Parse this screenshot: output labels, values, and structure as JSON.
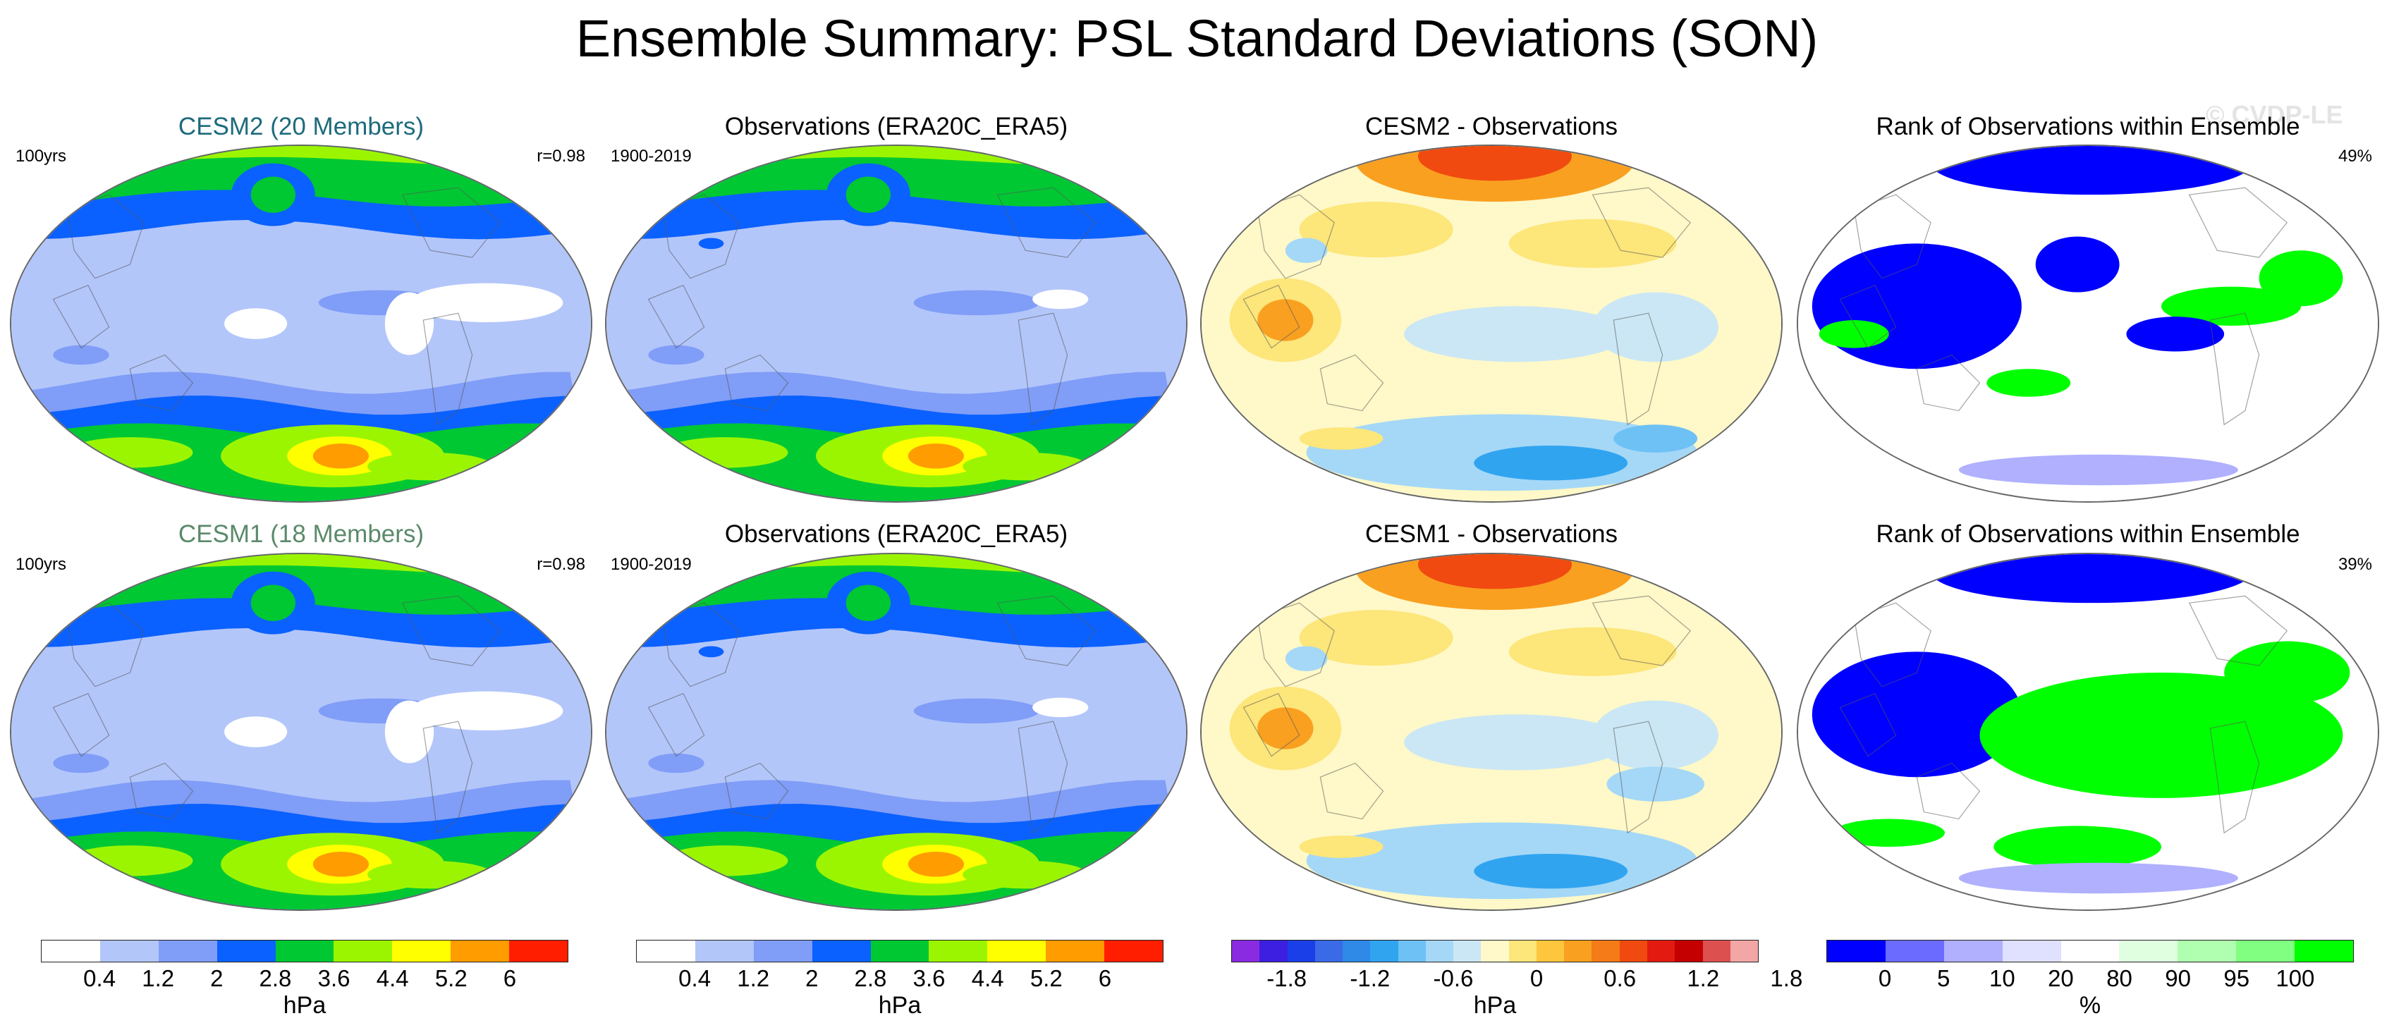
{
  "chart_data": {
    "type": "heatmap",
    "title": "Ensemble Summary: PSL Standard Deviations (SON)",
    "watermark": "© CVDP-LE",
    "rows": [
      {
        "panels": [
          {
            "title": "CESM2 (20 Members)",
            "title_color": "#1d6b7c",
            "left_label": "100yrs",
            "right_label": "r=0.98",
            "scale": "psl",
            "pattern": "model"
          },
          {
            "title": "Observations (ERA20C_ERA5)",
            "title_color": "#000000",
            "left_label": "1900-2019",
            "right_label": "",
            "scale": "psl",
            "pattern": "obs"
          },
          {
            "title": "CESM2 - Observations",
            "title_color": "#000000",
            "left_label": "",
            "right_label": "",
            "scale": "diff",
            "pattern": "diff2"
          },
          {
            "title": "Rank of Observations within Ensemble",
            "title_color": "#000000",
            "left_label": "",
            "right_label": "49%",
            "scale": "rank",
            "pattern": "rank2"
          }
        ]
      },
      {
        "panels": [
          {
            "title": "CESM1 (18 Members)",
            "title_color": "#5a8a6a",
            "left_label": "100yrs",
            "right_label": "r=0.98",
            "scale": "psl",
            "pattern": "model"
          },
          {
            "title": "Observations (ERA20C_ERA5)",
            "title_color": "#000000",
            "left_label": "1900-2019",
            "right_label": "",
            "scale": "psl",
            "pattern": "obs"
          },
          {
            "title": "CESM1 - Observations",
            "title_color": "#000000",
            "left_label": "",
            "right_label": "",
            "scale": "diff",
            "pattern": "diff1"
          },
          {
            "title": "Rank of Observations within Ensemble",
            "title_color": "#000000",
            "left_label": "",
            "right_label": "39%",
            "scale": "rank",
            "pattern": "rank1"
          }
        ]
      }
    ],
    "colorbars": [
      {
        "name": "psl-std-1",
        "unit": "hPa",
        "colors": [
          "#ffffff",
          "#b3c6fa",
          "#809df7",
          "#0b61ff",
          "#00c832",
          "#9cf500",
          "#ffff00",
          "#ff9c00",
          "#ff1e00"
        ],
        "ticks": [
          "0.4",
          "1.2",
          "2",
          "2.8",
          "3.6",
          "4.4",
          "5.2",
          "6"
        ]
      },
      {
        "name": "psl-std-2",
        "unit": "hPa",
        "colors": [
          "#ffffff",
          "#b3c6fa",
          "#809df7",
          "#0b61ff",
          "#00c832",
          "#9cf500",
          "#ffff00",
          "#ff9c00",
          "#ff1e00"
        ],
        "ticks": [
          "0.4",
          "1.2",
          "2",
          "2.8",
          "3.6",
          "4.4",
          "5.2",
          "6"
        ]
      },
      {
        "name": "diff",
        "unit": "hPa",
        "colors": [
          "#8a2be2",
          "#3c1fe0",
          "#1a3ee8",
          "#3a6ae6",
          "#2e8ae6",
          "#31a4f0",
          "#6ec1f5",
          "#a5d8f7",
          "#cbe7f5",
          "#fff8c8",
          "#fde67a",
          "#fdc63c",
          "#f9a020",
          "#f57a18",
          "#f04a10",
          "#e21a10",
          "#c40000",
          "#dc5050",
          "#f3a6a6"
        ],
        "ticks": [
          "-1.8",
          "-1.2",
          "-0.6",
          "0",
          "0.6",
          "1.2",
          "1.8"
        ]
      },
      {
        "name": "rank",
        "unit": "%",
        "colors": [
          "#0000ff",
          "#6b6bff",
          "#b0b0ff",
          "#e0e0ff",
          "#ffffff",
          "#e0ffe0",
          "#b0ffb0",
          "#80ff80",
          "#00ff00"
        ],
        "ticks": [
          "0",
          "5",
          "10",
          "20",
          "80",
          "90",
          "95",
          "100"
        ]
      }
    ]
  }
}
